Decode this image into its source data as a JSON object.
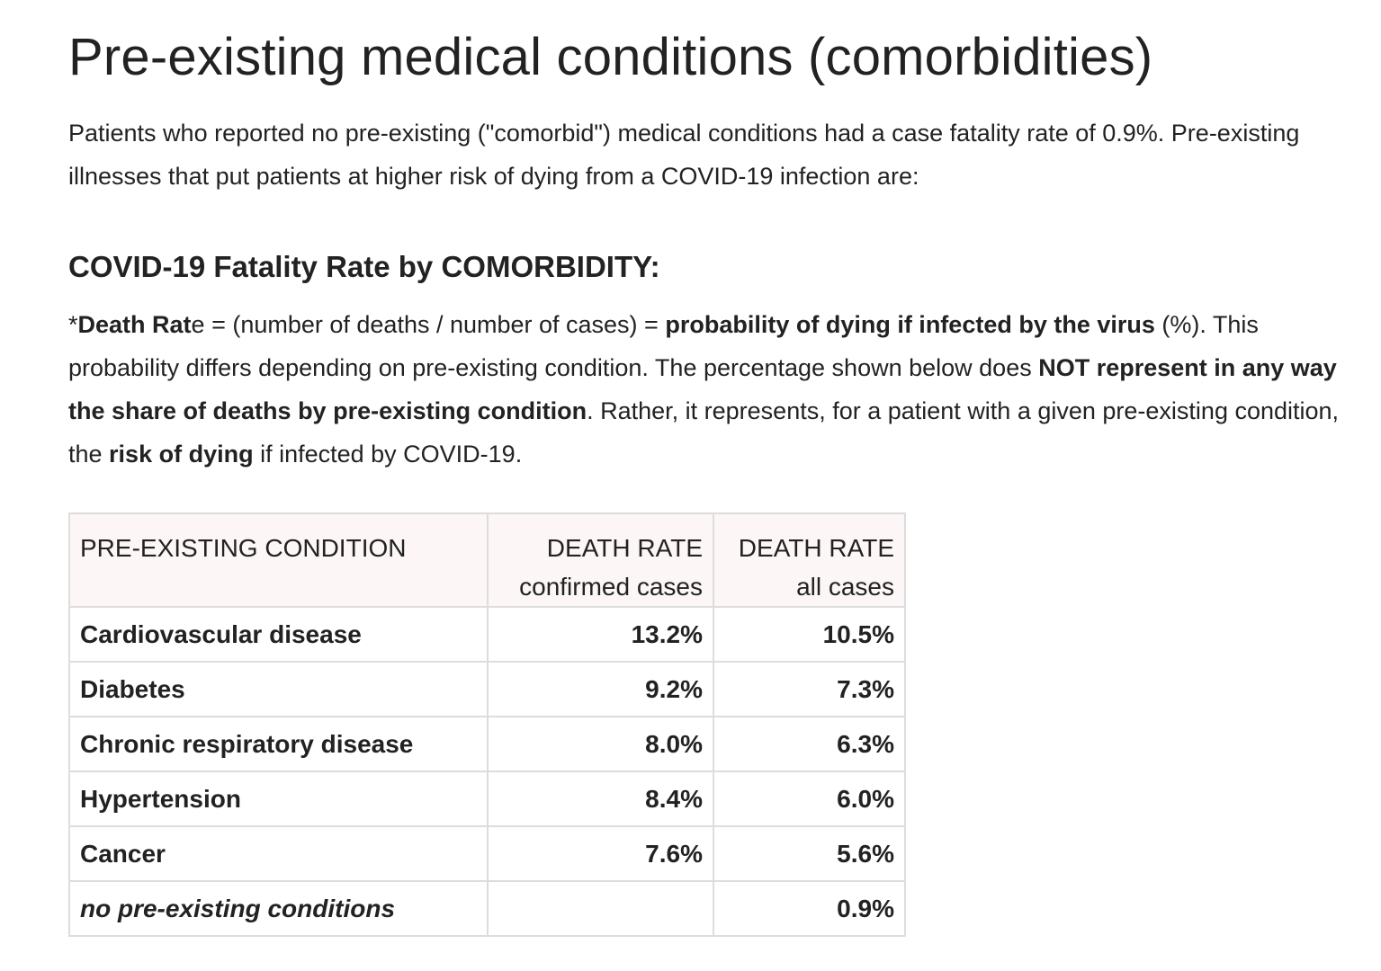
{
  "title": "Pre-existing medical conditions (comorbidities)",
  "intro": "Patients who reported no pre-existing (\"comorbid\") medical conditions had a case fatality rate of 0.9%. Pre-existing illnesses that put patients at higher risk of dying from a COVID-19 infection are:",
  "subtitle": "COVID-19 Fatality Rate by COMORBIDITY:",
  "note": {
    "p1": "*",
    "p2": "Death Rat",
    "p3": "e = (number of deaths / number of cases) = ",
    "p4": "probability of dying if infected by the virus",
    "p5": " (%). This probability differs depending on pre-existing condition. The percentage shown below does ",
    "p6": "NOT represent in any way the share of deaths by pre-existing condition",
    "p7": ". Rather, it represents, for a patient with a given pre-existing condition, the ",
    "p8": "risk of dying",
    "p9": " if infected by COVID-19."
  },
  "table": {
    "headers": {
      "condition": "PRE-EXISTING CONDITION",
      "confirmed_line1": "DEATH RATE",
      "confirmed_line2": "confirmed cases",
      "all_line1": "DEATH RATE",
      "all_line2": "all cases"
    },
    "rows": [
      {
        "condition": "Cardiovascular disease",
        "confirmed": "13.2%",
        "all": "10.5%"
      },
      {
        "condition": "Diabetes",
        "confirmed": "9.2%",
        "all": "7.3%"
      },
      {
        "condition": "Chronic respiratory disease",
        "confirmed": "8.0%",
        "all": "6.3%"
      },
      {
        "condition": "Hypertension",
        "confirmed": "8.4%",
        "all": "6.0%"
      },
      {
        "condition": "Cancer",
        "confirmed": "7.6%",
        "all": "5.6%"
      },
      {
        "condition": "no pre-existing conditions",
        "confirmed": "",
        "all": "0.9%"
      }
    ]
  }
}
